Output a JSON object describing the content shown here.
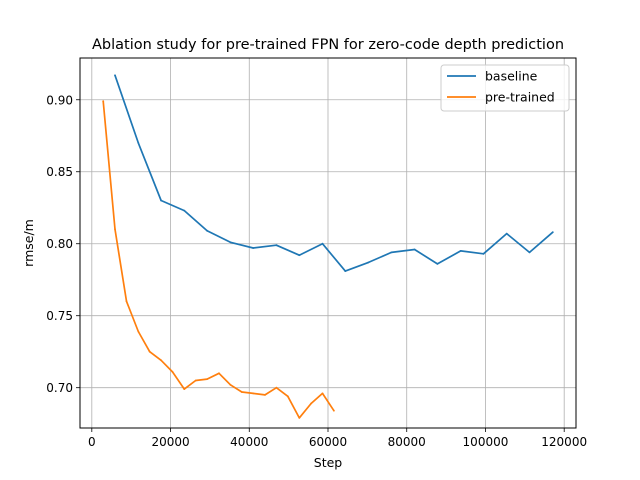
{
  "chart_data": {
    "type": "line",
    "title": "Ablation study for pre-trained FPN for zero-code depth prediction",
    "xlabel": "Step",
    "ylabel": "rmse/m",
    "xlim": [
      -3000,
      123000
    ],
    "ylim": [
      0.672,
      0.929
    ],
    "xticks": [
      0,
      20000,
      40000,
      60000,
      80000,
      100000,
      120000
    ],
    "yticks": [
      0.7,
      0.75,
      0.8,
      0.85,
      0.9
    ],
    "ytick_labels": [
      "0.70",
      "0.75",
      "0.80",
      "0.85",
      "0.90"
    ],
    "grid": true,
    "legend": "top-right",
    "series": [
      {
        "name": "baseline",
        "color": "#1f77b4",
        "x": [
          5900,
          11800,
          17600,
          23500,
          29300,
          35200,
          41000,
          46900,
          52700,
          58600,
          64400,
          70300,
          76100,
          82000,
          87800,
          93700,
          99500,
          105400,
          111200,
          117100
        ],
        "y": [
          0.917,
          0.87,
          0.83,
          0.823,
          0.809,
          0.801,
          0.797,
          0.799,
          0.792,
          0.8,
          0.781,
          0.787,
          0.794,
          0.796,
          0.786,
          0.795,
          0.793,
          0.807,
          0.794,
          0.808
        ]
      },
      {
        "name": "pre-trained",
        "color": "#ff7f0e",
        "x": [
          2900,
          5900,
          8800,
          11800,
          14700,
          17600,
          20500,
          23500,
          26400,
          29300,
          32300,
          35200,
          38100,
          41000,
          44000,
          46900,
          49800,
          52700,
          55700,
          58600,
          61500
        ],
        "y": [
          0.899,
          0.81,
          0.76,
          0.739,
          0.725,
          0.719,
          0.711,
          0.699,
          0.705,
          0.706,
          0.71,
          0.702,
          0.697,
          0.696,
          0.695,
          0.7,
          0.694,
          0.679,
          0.689,
          0.696,
          0.684
        ]
      }
    ]
  }
}
